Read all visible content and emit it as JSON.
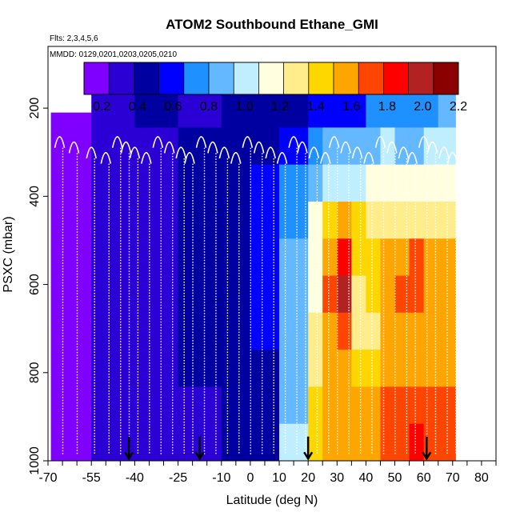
{
  "chart_data": {
    "type": "heatmap",
    "title": "ATOM2 Southbound Ethane_GMI",
    "subtitle_flights": "Flts: 2,3,4,5,6",
    "subtitle_dates": "MMDD: 0129,0201,0203,0205,0210",
    "xlabel": "Latitude (deg N)",
    "ylabel": "PSXC (mbar)",
    "xlim": [
      -70,
      85
    ],
    "ylim": [
      1000,
      60
    ],
    "x_tick_labels": [
      "-70",
      "-55",
      "-40",
      "-25",
      "-10",
      "0",
      "10",
      "20",
      "30",
      "40",
      "50",
      "60",
      "70",
      "80"
    ],
    "y_tick_labels": [
      "200",
      "400",
      "600",
      "800",
      "1000"
    ],
    "colorbar": {
      "min": 0.1,
      "max": 2.2,
      "tick_labels": [
        "0.2",
        "0.4",
        "0.6",
        "0.8",
        "1.0",
        "1.2",
        "1.4",
        "1.6",
        "1.8",
        "2.0",
        "2.2"
      ],
      "colors": [
        "#7f00ff",
        "#2a00d5",
        "#0000a0",
        "#0000ff",
        "#1e90ff",
        "#63b8ff",
        "#bfefff",
        "#ffffe0",
        "#ffec8b",
        "#ffd700",
        "#ffa500",
        "#ff4500",
        "#ff0000",
        "#b22222",
        "#8b0000"
      ]
    },
    "columns": [
      {
        "lat_from": -69,
        "lat_to": -55,
        "p_top": 210,
        "values": [
          0.22,
          0.22,
          0.22,
          0.23,
          0.23,
          0.23,
          0.24,
          0.24,
          0.24,
          0.24
        ]
      },
      {
        "lat_from": -55,
        "lat_to": -40,
        "p_top": 160,
        "values": [
          0.28,
          0.27,
          0.3,
          0.3,
          0.3,
          0.3,
          0.3,
          0.3,
          0.29,
          0.29
        ]
      },
      {
        "lat_from": -40,
        "lat_to": -25,
        "p_top": 160,
        "values": [
          0.38,
          0.35,
          0.35,
          0.35,
          0.35,
          0.35,
          0.35,
          0.34,
          0.34,
          0.34
        ]
      },
      {
        "lat_from": -25,
        "lat_to": -10,
        "p_top": 160,
        "values": [
          0.36,
          0.38,
          0.4,
          0.4,
          0.39,
          0.39,
          0.38,
          0.38,
          0.37,
          0.36
        ]
      },
      {
        "lat_from": -10,
        "lat_to": 0,
        "p_top": 160,
        "values": [
          0.42,
          0.45,
          0.48,
          0.5,
          0.5,
          0.5,
          0.5,
          0.48,
          0.46,
          0.42
        ]
      },
      {
        "lat_from": 0,
        "lat_to": 10,
        "p_top": 160,
        "values": [
          0.45,
          0.5,
          0.55,
          0.58,
          0.55,
          0.55,
          0.52,
          0.5,
          0.48,
          0.45
        ]
      },
      {
        "lat_from": 10,
        "lat_to": 20,
        "p_top": 160,
        "values": [
          0.5,
          0.6,
          0.7,
          0.75,
          0.8,
          0.82,
          0.85,
          0.85,
          0.9,
          1.0
        ]
      },
      {
        "lat_from": 20,
        "lat_to": 25,
        "p_top": 160,
        "values": [
          0.55,
          0.7,
          0.9,
          1.1,
          1.2,
          1.2,
          1.25,
          1.3,
          1.4,
          1.45
        ]
      },
      {
        "lat_from": 25,
        "lat_to": 30,
        "p_top": 160,
        "values": [
          0.6,
          0.8,
          1.0,
          1.4,
          1.6,
          1.7,
          1.6,
          1.55,
          1.6,
          1.6
        ]
      },
      {
        "lat_from": 30,
        "lat_to": 35,
        "p_top": 160,
        "values": [
          0.6,
          0.8,
          1.0,
          1.5,
          1.85,
          2.0,
          1.75,
          1.6,
          1.6,
          1.6
        ]
      },
      {
        "lat_from": 35,
        "lat_to": 40,
        "p_top": 160,
        "values": [
          0.65,
          0.85,
          1.05,
          1.4,
          1.45,
          1.35,
          1.3,
          1.45,
          1.6,
          1.6
        ]
      },
      {
        "lat_from": 40,
        "lat_to": 45,
        "p_top": 160,
        "values": [
          0.7,
          0.9,
          1.1,
          1.35,
          1.45,
          1.4,
          1.35,
          1.45,
          1.55,
          1.6
        ]
      },
      {
        "lat_from": 45,
        "lat_to": 50,
        "p_top": 160,
        "values": [
          0.75,
          0.95,
          1.1,
          1.3,
          1.5,
          1.55,
          1.5,
          1.6,
          1.65,
          1.7
        ]
      },
      {
        "lat_from": 50,
        "lat_to": 55,
        "p_top": 160,
        "values": [
          0.7,
          0.9,
          1.1,
          1.35,
          1.6,
          1.7,
          1.6,
          1.6,
          1.7,
          1.75
        ]
      },
      {
        "lat_from": 55,
        "lat_to": 60,
        "p_top": 160,
        "values": [
          0.7,
          0.9,
          1.1,
          1.35,
          1.75,
          1.65,
          1.55,
          1.6,
          1.75,
          1.8
        ]
      },
      {
        "lat_from": 60,
        "lat_to": 65,
        "p_top": 160,
        "values": [
          0.75,
          0.95,
          1.15,
          1.3,
          1.55,
          1.5,
          1.5,
          1.6,
          1.7,
          1.7
        ]
      },
      {
        "lat_from": 65,
        "lat_to": 71,
        "p_top": 160,
        "values": [
          0.8,
          1.0,
          1.2,
          1.3,
          1.5,
          1.5,
          1.55,
          1.6,
          1.65,
          1.65
        ]
      }
    ],
    "arrows_lat": [
      -42,
      -17.5,
      20,
      61
    ],
    "profiles_lat": [
      -66,
      -61,
      -55,
      -50,
      -46,
      -43,
      -40,
      -36,
      -32,
      -28,
      -24,
      -21,
      -17,
      -13,
      -9,
      -5,
      -1,
      3,
      7,
      11,
      15,
      18,
      22,
      26,
      29,
      33,
      37,
      41,
      45,
      49,
      53,
      56,
      60,
      63,
      67,
      70
    ]
  }
}
